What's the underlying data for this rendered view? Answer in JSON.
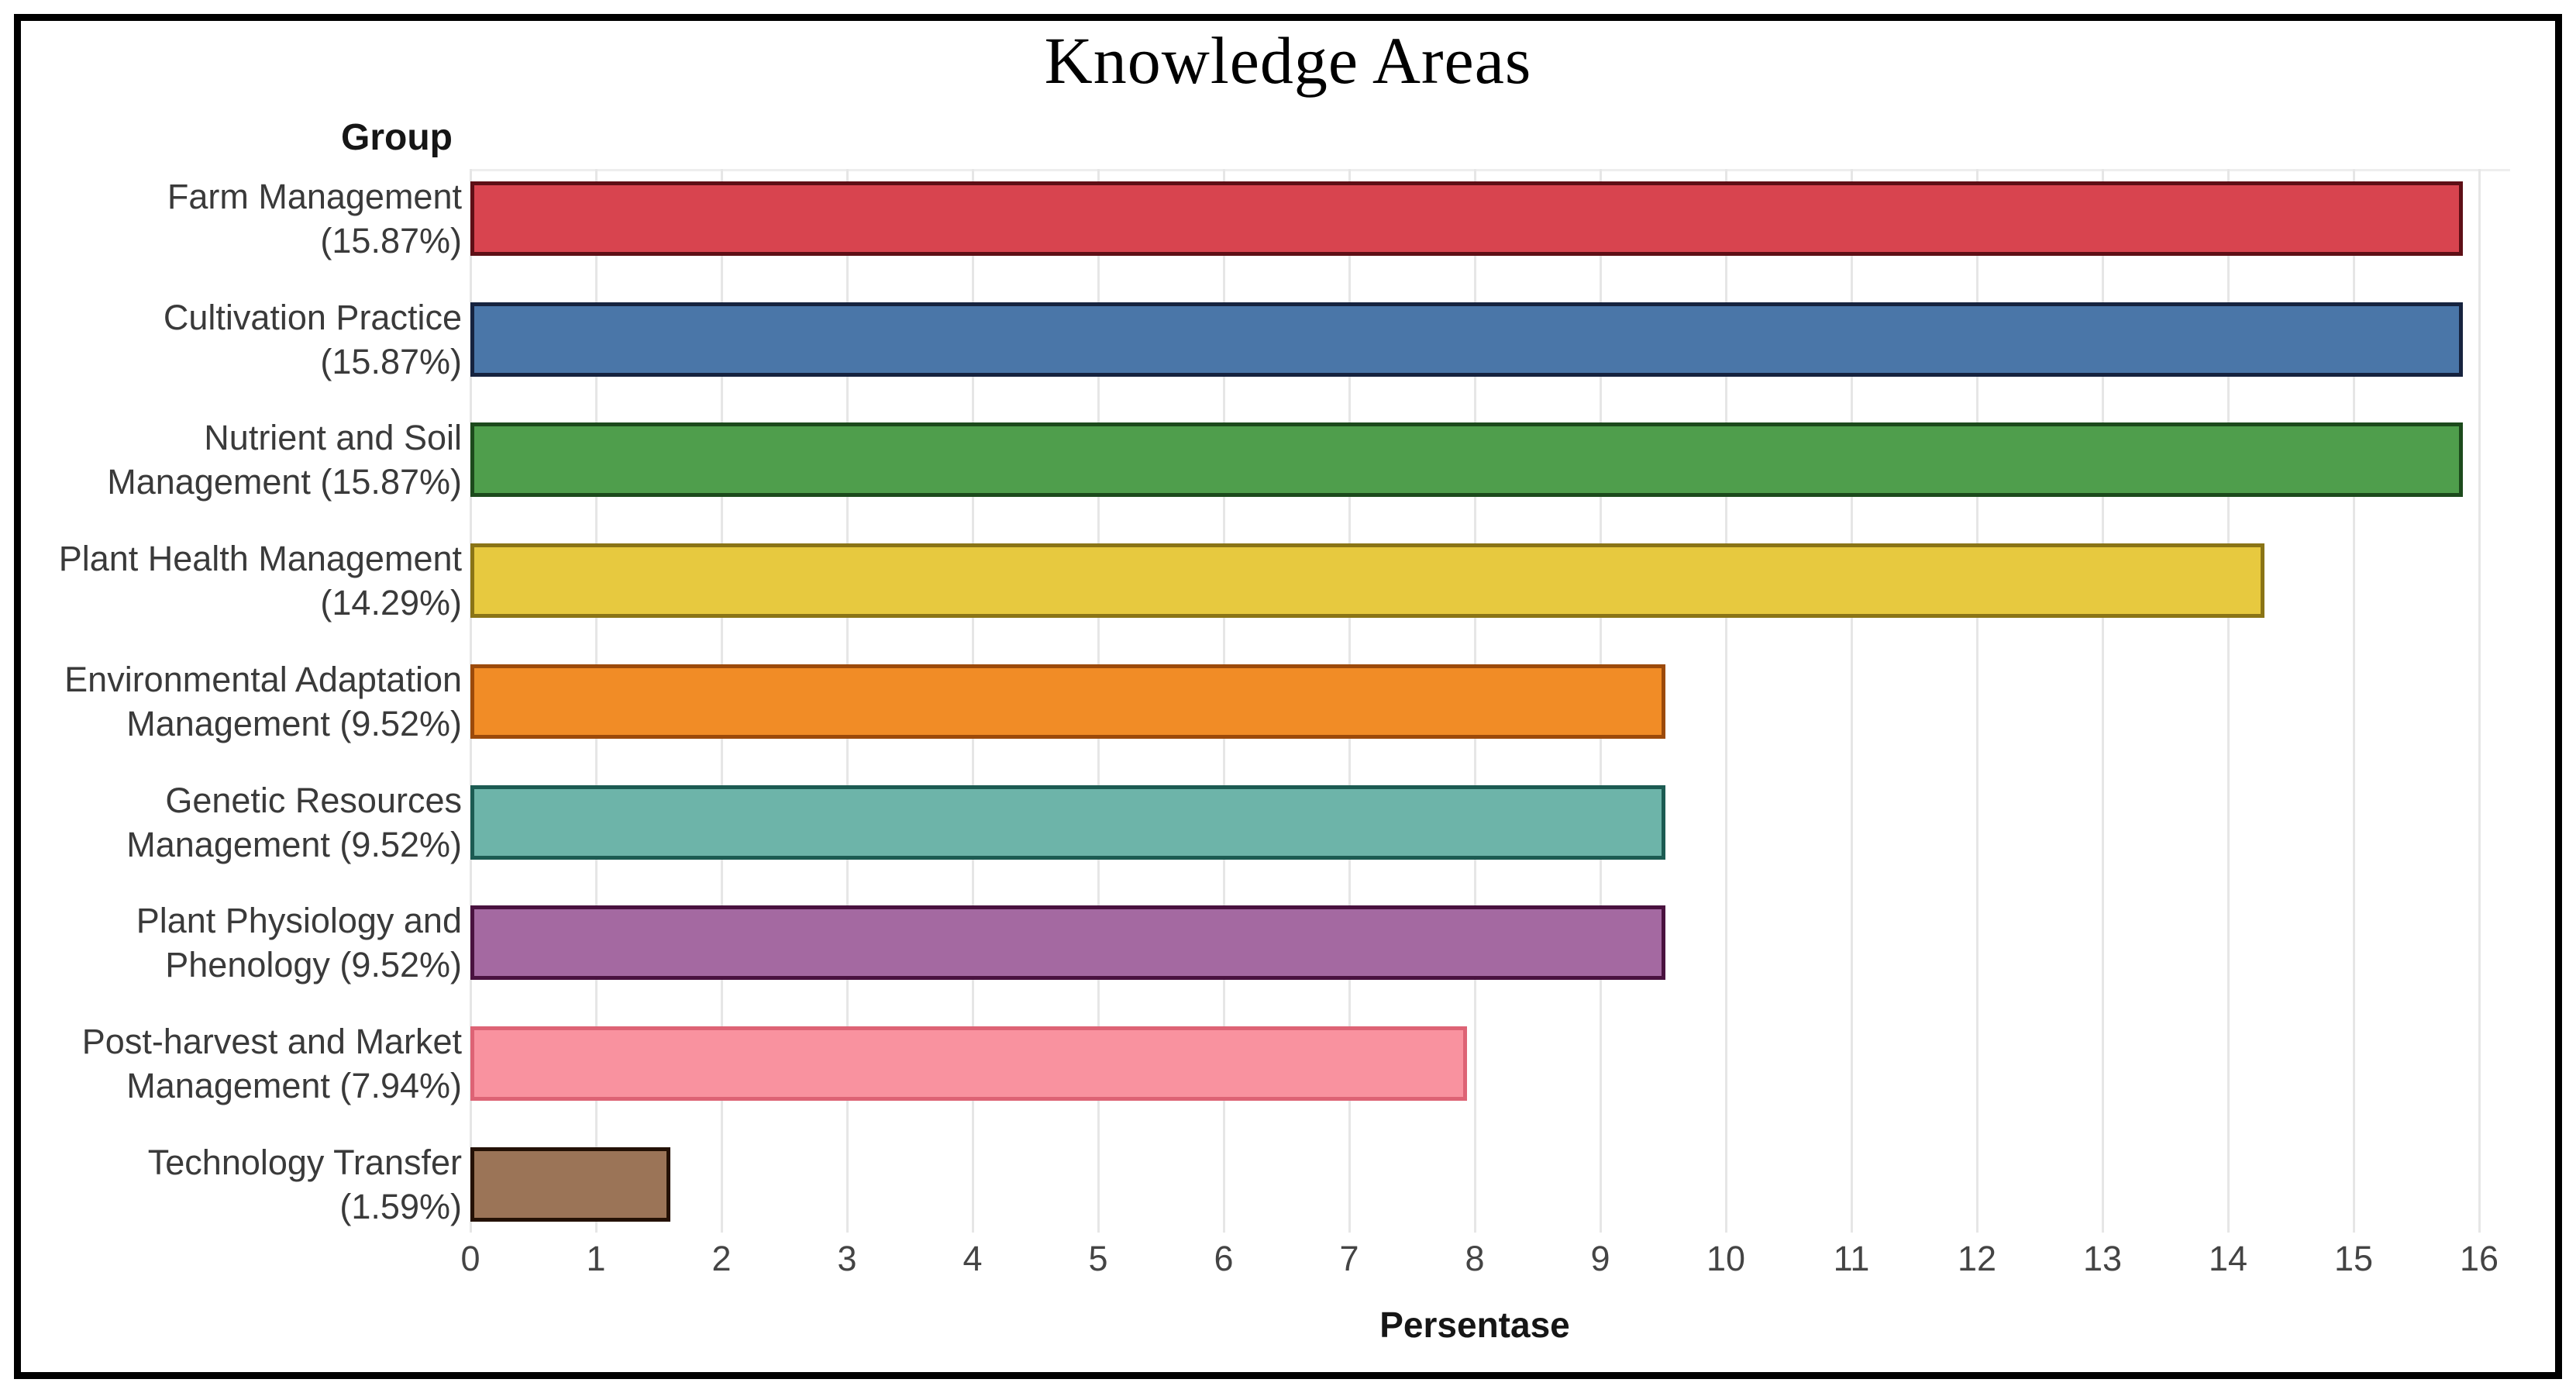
{
  "chart_data": {
    "type": "bar",
    "orientation": "horizontal",
    "title": "Knowledge Areas",
    "group_header": "Group",
    "xlabel": "Persentase",
    "xlim": [
      0,
      16.4
    ],
    "x_ticks": [
      "0",
      "1",
      "2",
      "3",
      "4",
      "5",
      "6",
      "7",
      "8",
      "9",
      "10",
      "11",
      "12",
      "13",
      "14",
      "15",
      "16"
    ],
    "grid": "vertical-light-gray",
    "legend": "none",
    "categories": [
      {
        "label": "Farm Management (15.87%)",
        "label_lines": [
          "Farm Management",
          "(15.87%)"
        ],
        "value": 15.87,
        "fill": "#d8444f",
        "border": "#5e0f16"
      },
      {
        "label": "Cultivation Practice (15.87%)",
        "label_lines": [
          "Cultivation Practice",
          "(15.87%)"
        ],
        "value": 15.87,
        "fill": "#4a76a8",
        "border": "#16233f"
      },
      {
        "label": "Nutrient and Soil Management (15.87%)",
        "label_lines": [
          "Nutrient and Soil",
          "Management (15.87%)"
        ],
        "value": 15.87,
        "fill": "#4f9e4c",
        "border": "#1c4a1c"
      },
      {
        "label": "Plant Health Management (14.29%)",
        "label_lines": [
          "Plant Health Management",
          "(14.29%)"
        ],
        "value": 14.29,
        "fill": "#e7c93f",
        "border": "#8a7416"
      },
      {
        "label": "Environmental Adaptation Management (9.52%)",
        "label_lines": [
          "Environmental Adaptation",
          "Management (9.52%)"
        ],
        "value": 9.52,
        "fill": "#f18c26",
        "border": "#9c4a0a"
      },
      {
        "label": "Genetic Resources Management (9.52%)",
        "label_lines": [
          "Genetic Resources",
          "Management (9.52%)"
        ],
        "value": 9.52,
        "fill": "#6db4a9",
        "border": "#1c5b52"
      },
      {
        "label": "Plant Physiology and Phenology (9.52%)",
        "label_lines": [
          "Plant Physiology and",
          "Phenology (9.52%)"
        ],
        "value": 9.52,
        "fill": "#a469a1",
        "border": "#49123f"
      },
      {
        "label": "Post-harvest and Market Management (7.94%)",
        "label_lines": [
          "Post-harvest and Market",
          "Management (7.94%)"
        ],
        "value": 7.94,
        "fill": "#f9929f",
        "border": "#dd6375"
      },
      {
        "label": "Technology Transfer (1.59%)",
        "label_lines": [
          "Technology Transfer",
          "(1.59%)"
        ],
        "value": 1.59,
        "fill": "#9b7457",
        "border": "#241105"
      }
    ]
  }
}
